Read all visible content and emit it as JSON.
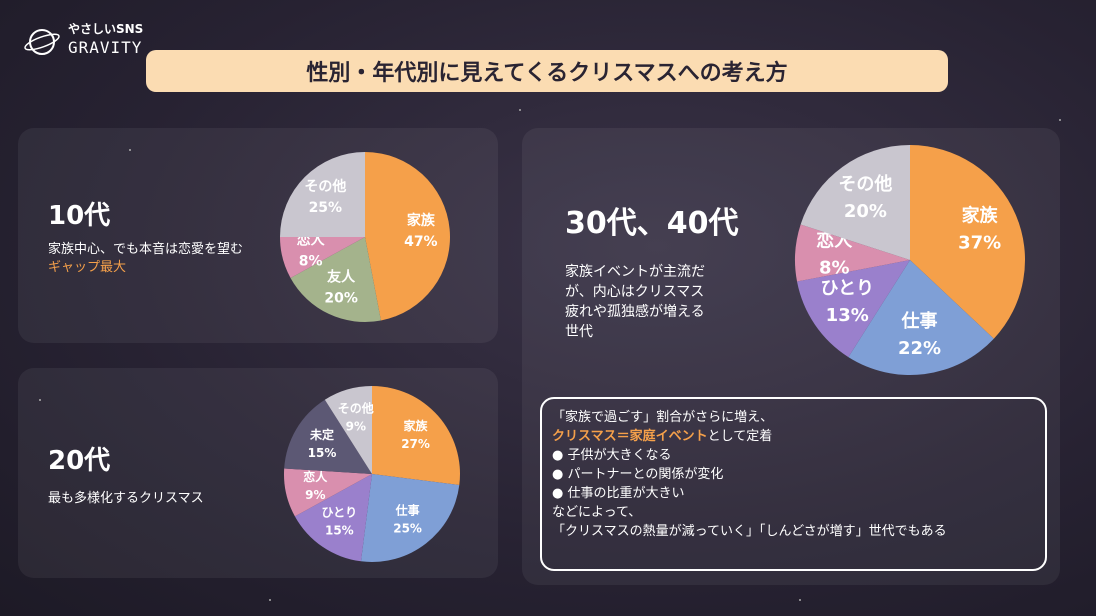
{
  "logo": {
    "tagline": "やさしいSNS",
    "name": "GRAVITY"
  },
  "title": "性別・年代別に見えてくるクリスマスへの考え方",
  "chart_data": [
    {
      "type": "pie",
      "title": "10代",
      "description": "家族中心、でも本音は恋愛を望む",
      "highlight": "ギャップ最大",
      "categories": [
        "家族",
        "友人",
        "恋人",
        "その他"
      ],
      "values": [
        47,
        20,
        8,
        25
      ],
      "value_labels": [
        "47%",
        "20%",
        "8%",
        "25%"
      ],
      "colors": [
        "#f5a04a",
        "#a4b38c",
        "#d98fae",
        "#c9c6cf"
      ]
    },
    {
      "type": "pie",
      "title": "20代",
      "description": "最も多様化するクリスマス",
      "categories": [
        "家族",
        "仕事",
        "ひとり",
        "恋人",
        "未定",
        "その他"
      ],
      "values": [
        27,
        25,
        15,
        9,
        15,
        9
      ],
      "value_labels": [
        "27%",
        "25%",
        "15%",
        "9%",
        "15%",
        "9%"
      ],
      "colors": [
        "#f5a04a",
        "#7f9fd6",
        "#9a80cc",
        "#d98fae",
        "#5c5874",
        "#c9c6cf"
      ]
    },
    {
      "type": "pie",
      "title": "30代、40代",
      "description": "家族イベントが主流だが、内心はクリスマス疲れや孤独感が増える世代",
      "categories": [
        "家族",
        "仕事",
        "ひとり",
        "恋人",
        "その他"
      ],
      "values": [
        37,
        22,
        13,
        8,
        20
      ],
      "value_labels": [
        "37%",
        "22%",
        "13%",
        "8%",
        "20%"
      ],
      "colors": [
        "#f5a04a",
        "#7f9fd6",
        "#9a80cc",
        "#d98fae",
        "#c9c6cf"
      ]
    }
  ],
  "note": {
    "intro": "「家族で過ごす」割合がさらに増え、",
    "highlight": "クリスマス＝家庭イベント",
    "highlight_rest": "として定着",
    "bullets": [
      "● 子供が大きくなる",
      "● パートナーとの関係が変化",
      "● 仕事の比重が大きい"
    ],
    "after": "などによって、",
    "closing": "「クリスマスの熱量が減っていく」「しんどさが増す」世代でもある"
  }
}
